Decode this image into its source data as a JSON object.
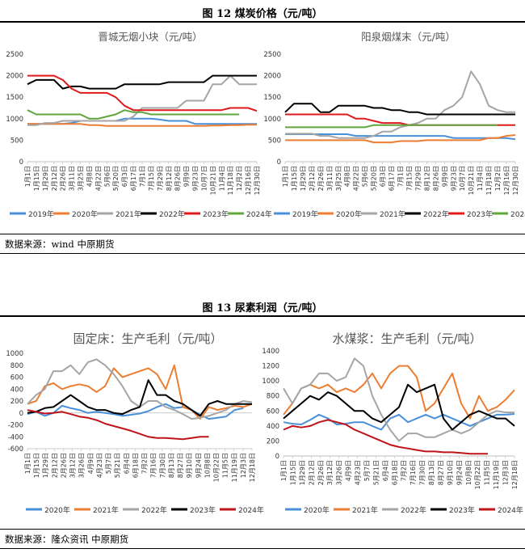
{
  "figure12": {
    "title": "图 12 煤炭价格（元/吨）",
    "source": "数据来源：wind 中原期货",
    "charts": [
      {
        "id": "jincheng",
        "title": "晋城无烟小块（元/吨）",
        "yticks": [
          "2500",
          "2000",
          "1500",
          "1000",
          "500",
          "0"
        ],
        "xticks": [
          "1月1日",
          "1月15日",
          "1月29日",
          "2月12日",
          "2月26日",
          "3月11日",
          "3月25日",
          "4月8日",
          "4月22日",
          "5月6日",
          "5月20日",
          "6月3日",
          "6月17日",
          "7月1日",
          "7月15日",
          "7月29日",
          "8月12日",
          "8月26日",
          "9月9日",
          "9月23日",
          "10月7日",
          "10月21日",
          "11月4日",
          "11月18日",
          "12月2日",
          "12月16日",
          "12月30日"
        ],
        "legend": [
          "2019年",
          "2020年",
          "2021年",
          "2022年",
          "2023年",
          "2024年"
        ]
      },
      {
        "id": "yangquan",
        "title": "阳泉烟煤末（元/吨）",
        "yticks": [
          "2500",
          "2000",
          "1500",
          "1000",
          "500",
          "0"
        ],
        "xticks": [
          "1月1日",
          "1月15日",
          "1月29日",
          "2月12日",
          "2月26日",
          "3月11日",
          "3月25日",
          "4月8日",
          "4月22日",
          "5月6日",
          "5月20日",
          "6月3日",
          "6月17日",
          "7月1日",
          "7月15日",
          "7月29日",
          "8月12日",
          "8月26日",
          "9月9日",
          "9月23日",
          "10月7日",
          "10月21日",
          "11月4日",
          "11月18日",
          "12月2日",
          "12月16日",
          "12月30日"
        ],
        "legend": [
          "2019年",
          "2020年",
          "2021年",
          "2022年",
          "2023年",
          "2024年"
        ]
      }
    ]
  },
  "figure13": {
    "title": "图 13 尿素利润（元/吨）",
    "source": "数据来源：隆众资讯 中原期货",
    "charts": [
      {
        "id": "guding",
        "title": "固定床：生产毛利（元/吨）",
        "yticks": [
          "1000",
          "800",
          "600",
          "400",
          "200",
          "0",
          "-200",
          "-400",
          "-600"
        ],
        "xticks": [
          "1月1日",
          "1月15日",
          "1月29日",
          "2月12日",
          "2月26日",
          "3月12日",
          "3月26日",
          "4月9日",
          "4月23日",
          "5月7日",
          "5月21日",
          "6月4日",
          "6月18日",
          "7月2日",
          "7月16日",
          "7月30日",
          "8月13日",
          "8月27日",
          "9月10日",
          "9月24日",
          "10月8日",
          "10月22日",
          "11月5日",
          "11月19日",
          "12月3日",
          "12月18日"
        ],
        "legend": [
          "2020年",
          "2021年",
          "2022年",
          "2023年",
          "2024年"
        ]
      },
      {
        "id": "shuimeijiang",
        "title": "水煤浆：生产毛利（元/吨）",
        "yticks": [
          "1400",
          "1200",
          "1000",
          "800",
          "600",
          "400",
          "200",
          "0"
        ],
        "xticks": [
          "1月1日",
          "1月15日",
          "1月29日",
          "2月12日",
          "2月26日",
          "3月12日",
          "3月26日",
          "4月9日",
          "4月23日",
          "5月7日",
          "5月21日",
          "6月4日",
          "6月18日",
          "7月2日",
          "7月16日",
          "7月30日",
          "8月13日",
          "8月27日",
          "9月10日",
          "9月24日",
          "10月8日",
          "10月22日",
          "11月5日",
          "11月19日",
          "12月3日",
          "12月18日"
        ],
        "legend": [
          "2020年",
          "2021年",
          "2022年",
          "2023年",
          "2024年"
        ]
      }
    ]
  },
  "colors": {
    "2019年": "#4a90d9",
    "2020年": "#ed7d31",
    "2021年": "#a5a5a5",
    "2022年": "#000000",
    "2023年": "#e0191c",
    "2024年": "#5fa63c",
    "fig13": {
      "2020年": "#4a90d9",
      "2021年": "#ed7d31",
      "2022年": "#a5a5a5",
      "2023年": "#000000",
      "2024年": "#c0141b"
    }
  },
  "chart_data": [
    {
      "type": "line",
      "title": "晋城无烟小块（元/吨）",
      "ylim": [
        0,
        2500
      ],
      "x": [
        1,
        15,
        29,
        43,
        57,
        71,
        85,
        99,
        113,
        127,
        141,
        155,
        169,
        183,
        197,
        211,
        225,
        239,
        253,
        267,
        281,
        295,
        309,
        323,
        337,
        351,
        365
      ],
      "series": [
        {
          "name": "2019年",
          "end": 365,
          "values": [
            880,
            880,
            880,
            880,
            880,
            900,
            950,
            950,
            950,
            950,
            950,
            1000,
            1000,
            1000,
            1000,
            980,
            950,
            950,
            950,
            880,
            880,
            880,
            880,
            880,
            880,
            880,
            880
          ]
        },
        {
          "name": "2020年",
          "end": 365,
          "values": [
            880,
            880,
            880,
            880,
            880,
            880,
            880,
            850,
            850,
            830,
            830,
            830,
            830,
            830,
            830,
            830,
            830,
            830,
            830,
            830,
            830,
            840,
            840,
            850,
            850,
            860,
            860
          ]
        },
        {
          "name": "2021年",
          "end": 365,
          "values": [
            850,
            850,
            900,
            900,
            950,
            950,
            950,
            950,
            950,
            950,
            950,
            950,
            1050,
            1250,
            1250,
            1250,
            1250,
            1250,
            1420,
            1420,
            1420,
            1800,
            1800,
            2000,
            1800,
            1800,
            1800
          ]
        },
        {
          "name": "2022年",
          "end": 365,
          "values": [
            1800,
            1900,
            1900,
            1900,
            1700,
            1750,
            1750,
            1700,
            1700,
            1700,
            1700,
            1800,
            1800,
            1800,
            1800,
            1800,
            1850,
            1850,
            1850,
            1850,
            1850,
            2000,
            2000,
            2000,
            2000,
            2000,
            2000
          ]
        },
        {
          "name": "2023年",
          "end": 365,
          "values": [
            2000,
            2000,
            2000,
            2000,
            1900,
            1700,
            1600,
            1600,
            1600,
            1600,
            1500,
            1300,
            1200,
            1200,
            1200,
            1200,
            1200,
            1200,
            1200,
            1200,
            1200,
            1200,
            1200,
            1250,
            1250,
            1250,
            1180
          ]
        },
        {
          "name": "2024年",
          "end": 340,
          "values": [
            1200,
            1100,
            1100,
            1100,
            1100,
            1100,
            1100,
            1000,
            1000,
            1050,
            1100,
            1200,
            1150,
            1150,
            1100,
            1100,
            1100,
            1100,
            1100,
            1100,
            1100,
            1100,
            1100,
            1100,
            1100,
            1050,
            1030
          ]
        }
      ]
    },
    {
      "type": "line",
      "title": "阳泉烟煤末（元/吨）",
      "ylim": [
        0,
        2500
      ],
      "x": [
        1,
        15,
        29,
        43,
        57,
        71,
        85,
        99,
        113,
        127,
        141,
        155,
        169,
        183,
        197,
        211,
        225,
        239,
        253,
        267,
        281,
        295,
        309,
        323,
        337,
        351,
        365
      ],
      "series": [
        {
          "name": "2019年",
          "end": 365,
          "values": [
            640,
            640,
            640,
            640,
            640,
            640,
            640,
            640,
            600,
            600,
            600,
            600,
            600,
            600,
            600,
            600,
            600,
            600,
            600,
            550,
            550,
            550,
            550,
            550,
            550,
            550,
            520
          ]
        },
        {
          "name": "2020年",
          "end": 365,
          "values": [
            500,
            500,
            500,
            500,
            500,
            500,
            500,
            500,
            500,
            500,
            450,
            450,
            450,
            480,
            480,
            480,
            500,
            500,
            500,
            500,
            500,
            500,
            500,
            550,
            550,
            600,
            620
          ]
        },
        {
          "name": "2021年",
          "end": 365,
          "values": [
            650,
            650,
            650,
            650,
            600,
            600,
            550,
            550,
            550,
            550,
            600,
            700,
            700,
            800,
            850,
            900,
            1000,
            1000,
            1200,
            1300,
            1500,
            2100,
            1800,
            1300,
            1200,
            1150,
            1150
          ]
        },
        {
          "name": "2022年",
          "end": 365,
          "values": [
            1150,
            1350,
            1350,
            1350,
            1150,
            1150,
            1300,
            1300,
            1300,
            1300,
            1250,
            1250,
            1200,
            1200,
            1150,
            1150,
            1100,
            1100,
            1100,
            1100,
            1100,
            1100,
            1100,
            1100,
            1100,
            1100,
            1100
          ]
        },
        {
          "name": "2023年",
          "end": 365,
          "values": [
            1100,
            1100,
            1100,
            1100,
            1100,
            1100,
            1100,
            1100,
            1000,
            1000,
            950,
            900,
            900,
            900,
            850,
            850,
            850,
            850,
            850,
            850,
            850,
            850,
            850,
            850,
            850,
            850,
            850
          ]
        },
        {
          "name": "2024年",
          "end": 350,
          "values": [
            800,
            800,
            800,
            800,
            800,
            800,
            800,
            800,
            800,
            800,
            850,
            850,
            850,
            850,
            850,
            850,
            850,
            850,
            850,
            850,
            850,
            850,
            850,
            850,
            850,
            850,
            850
          ]
        }
      ]
    },
    {
      "type": "line",
      "title": "固定床：生产毛利（元/吨）",
      "ylim": [
        -600,
        1000
      ],
      "x": [
        1,
        15,
        29,
        43,
        57,
        71,
        85,
        99,
        113,
        127,
        141,
        155,
        169,
        183,
        197,
        211,
        225,
        239,
        253,
        267,
        281,
        295,
        309,
        323,
        337,
        351,
        365
      ],
      "series": [
        {
          "name": "2020年",
          "end": 355,
          "values": [
            -20,
            20,
            -50,
            0,
            120,
            80,
            50,
            0,
            20,
            0,
            -20,
            -50,
            -30,
            -10,
            30,
            100,
            150,
            80,
            100,
            50,
            -30,
            -100,
            -80,
            -60,
            50,
            80,
            80
          ]
        },
        {
          "name": "2021年",
          "end": 365,
          "values": [
            150,
            200,
            450,
            500,
            400,
            450,
            480,
            450,
            350,
            450,
            750,
            600,
            650,
            700,
            750,
            650,
            400,
            800,
            100,
            50,
            -100,
            100,
            50,
            80,
            120,
            100,
            150
          ]
        },
        {
          "name": "2022年",
          "end": 365,
          "values": [
            150,
            300,
            400,
            700,
            700,
            800,
            650,
            850,
            900,
            800,
            650,
            450,
            200,
            100,
            200,
            200,
            100,
            50,
            -20,
            -100,
            -80,
            -50,
            0,
            50,
            150,
            200,
            180
          ]
        },
        {
          "name": "2023年",
          "end": 365,
          "values": [
            0,
            20,
            80,
            100,
            200,
            300,
            200,
            100,
            50,
            50,
            0,
            -20,
            50,
            100,
            550,
            300,
            300,
            200,
            150,
            50,
            -50,
            150,
            200,
            150,
            150,
            150,
            150
          ]
        },
        {
          "name": "2024年",
          "end": 300,
          "values": [
            50,
            20,
            -10,
            0,
            20,
            -20,
            -60,
            -80,
            -120,
            -180,
            -220,
            -260,
            -300,
            -350,
            -400,
            -420,
            -420,
            -430,
            -440,
            -420,
            -400,
            -400,
            -400,
            -400,
            -400,
            -400,
            -400
          ]
        }
      ]
    },
    {
      "type": "line",
      "title": "水煤浆：生产毛利（元/吨）",
      "ylim": [
        0,
        1400
      ],
      "x": [
        1,
        15,
        29,
        43,
        57,
        71,
        85,
        99,
        113,
        127,
        141,
        155,
        169,
        183,
        197,
        211,
        225,
        239,
        253,
        267,
        281,
        295,
        309,
        323,
        337,
        351,
        365
      ],
      "series": [
        {
          "name": "2020年",
          "end": 365,
          "values": [
            450,
            430,
            420,
            480,
            550,
            500,
            420,
            430,
            450,
            450,
            400,
            350,
            500,
            550,
            450,
            500,
            550,
            500,
            550,
            500,
            450,
            400,
            450,
            500,
            550,
            550,
            560
          ]
        },
        {
          "name": "2021年",
          "end": 365,
          "values": [
            550,
            700,
            900,
            950,
            900,
            950,
            850,
            900,
            850,
            950,
            1100,
            900,
            1100,
            1200,
            1200,
            1050,
            600,
            700,
            900,
            1100,
            700,
            500,
            800,
            600,
            650,
            750,
            880
          ]
        },
        {
          "name": "2022年",
          "end": 365,
          "values": [
            900,
            700,
            900,
            950,
            1100,
            1100,
            1000,
            1050,
            1300,
            1200,
            800,
            550,
            350,
            200,
            300,
            300,
            250,
            250,
            300,
            350,
            300,
            350,
            450,
            550,
            600,
            580,
            580
          ]
        },
        {
          "name": "2023年",
          "end": 365,
          "values": [
            500,
            600,
            700,
            800,
            750,
            850,
            800,
            700,
            600,
            600,
            500,
            450,
            550,
            650,
            950,
            850,
            900,
            950,
            500,
            350,
            450,
            550,
            600,
            550,
            500,
            500,
            400
          ]
        },
        {
          "name": "2024年",
          "end": 335,
          "values": [
            350,
            400,
            380,
            400,
            450,
            480,
            450,
            420,
            350,
            300,
            250,
            200,
            150,
            120,
            100,
            80,
            60,
            60,
            50,
            50,
            40,
            30,
            30,
            30,
            30,
            30,
            30
          ]
        }
      ]
    }
  ]
}
